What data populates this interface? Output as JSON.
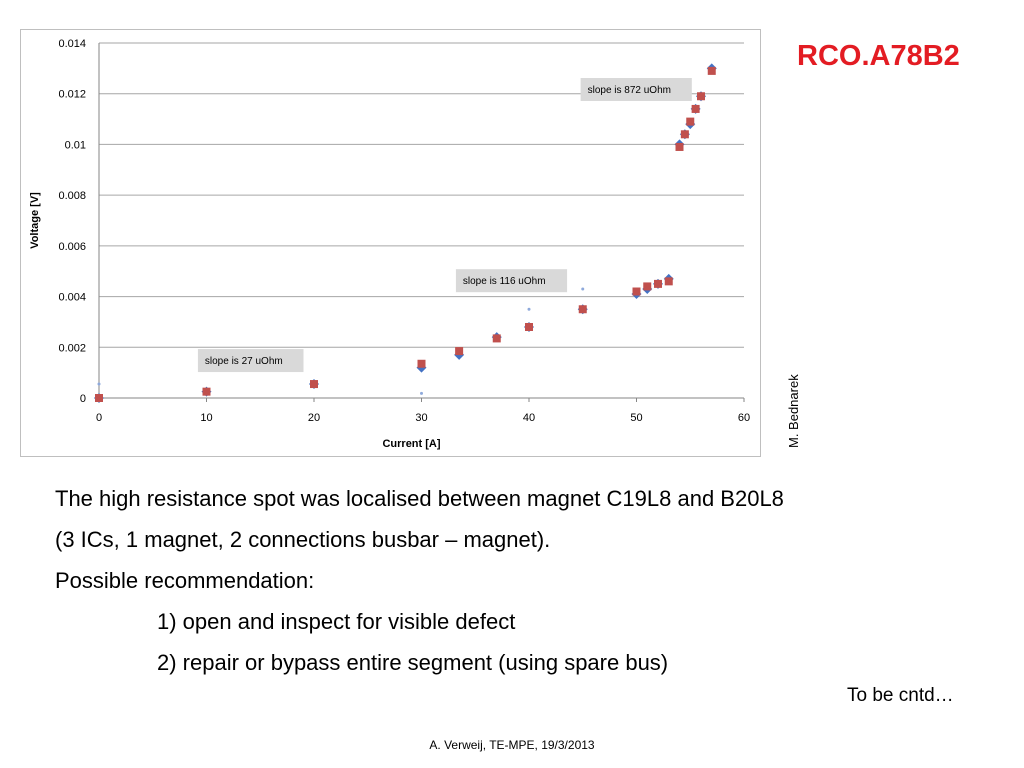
{
  "slide": {
    "title": "RCO.A78B2",
    "author": "M. Bednarek",
    "body_lines": [
      "The high resistance spot was localised between magnet C19L8 and B20L8",
      "(3 ICs, 1 magnet, 2 connections busbar – magnet).",
      "Possible recommendation:",
      "1) open and inspect for visible defect",
      "2) repair or bypass entire segment (using spare bus)"
    ],
    "continued_note": "To be cntd…",
    "footer": "A. Verweij, TE-MPE, 19/3/2013"
  },
  "chart_data": {
    "type": "scatter",
    "title": "",
    "xlabel": "Current [A]",
    "ylabel": "Voltage [V]",
    "xlim": [
      0,
      60
    ],
    "ylim": [
      0,
      0.014
    ],
    "x_ticks": [
      0,
      10,
      20,
      30,
      40,
      50,
      60
    ],
    "x_tick_labels": [
      "0",
      "10",
      "20",
      "30",
      "40",
      "50",
      "60"
    ],
    "y_ticks": [
      0,
      0.002,
      0.004,
      0.006,
      0.008,
      0.01,
      0.012,
      0.014
    ],
    "y_tick_labels": [
      "0",
      "0.002",
      "0.004",
      "0.006",
      "0.008",
      "0.01",
      "0.012",
      "0.014"
    ],
    "grid": "horizontal",
    "legend": "none",
    "series": [
      {
        "color": "#4472c4",
        "marker": "diamond",
        "points": [
          [
            0,
            0
          ],
          [
            10,
            0.00025
          ],
          [
            20,
            0.00055
          ],
          [
            30,
            0.0012
          ],
          [
            33.5,
            0.0017
          ],
          [
            37,
            0.0024
          ],
          [
            40,
            0.0028
          ],
          [
            45,
            0.0035
          ],
          [
            50,
            0.0041
          ],
          [
            51,
            0.0043
          ],
          [
            52,
            0.0045
          ],
          [
            53,
            0.0047
          ],
          [
            54,
            0.01
          ],
          [
            54.5,
            0.0104
          ],
          [
            55,
            0.0108
          ],
          [
            55.5,
            0.0114
          ],
          [
            56,
            0.0119
          ],
          [
            57,
            0.013
          ]
        ]
      },
      {
        "color": "#c0504d",
        "marker": "square",
        "points": [
          [
            0,
            0
          ],
          [
            10,
            0.00025
          ],
          [
            20,
            0.00055
          ],
          [
            30,
            0.00135
          ],
          [
            33.5,
            0.00185
          ],
          [
            37,
            0.00235
          ],
          [
            40,
            0.0028
          ],
          [
            45,
            0.0035
          ],
          [
            50,
            0.0042
          ],
          [
            51,
            0.0044
          ],
          [
            52,
            0.0045
          ],
          [
            53,
            0.0046
          ],
          [
            54,
            0.0099
          ],
          [
            54.5,
            0.0104
          ],
          [
            55,
            0.0109
          ],
          [
            55.5,
            0.0114
          ],
          [
            56,
            0.0119
          ],
          [
            57,
            0.0129
          ]
        ]
      },
      {
        "color": "#8ea9db",
        "marker": "dot",
        "points": [
          [
            0,
            0.00055
          ],
          [
            30,
            0.00018
          ],
          [
            40,
            0.0035
          ],
          [
            45,
            0.0043
          ]
        ]
      }
    ],
    "annotations": [
      {
        "text": "slope is 27 uOhm",
        "x": 9.2,
        "y": 0.00193
      },
      {
        "text": "slope is 116 uOhm",
        "x": 33.2,
        "y": 0.00508
      },
      {
        "text": "slope is 872 uOhm",
        "x": 44.8,
        "y": 0.01262
      }
    ]
  }
}
